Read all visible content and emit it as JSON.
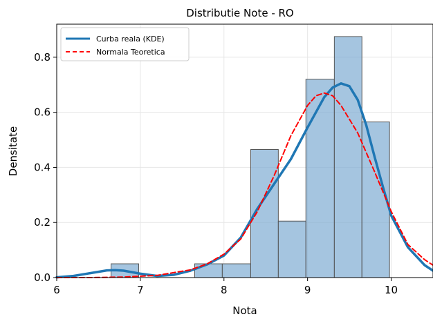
{
  "chart_data": {
    "type": "histogram",
    "title": "Distributie Note - RO",
    "xlabel": "Nota",
    "ylabel": "Densitate",
    "xlim": [
      6.0,
      10.5
    ],
    "ylim": [
      0.0,
      0.92
    ],
    "xticks": [
      6,
      7,
      8,
      9,
      10
    ],
    "xtick_labels": [
      "6",
      "7",
      "8",
      "9",
      "10"
    ],
    "yticks": [
      0.0,
      0.2,
      0.4,
      0.6,
      0.8
    ],
    "ytick_labels": [
      "0.0",
      "0.2",
      "0.4",
      "0.6",
      "0.8"
    ],
    "grid": true,
    "legend_position": "top-left",
    "histogram": {
      "bin_edges": [
        6.65,
        6.98,
        7.32,
        7.65,
        7.98,
        8.32,
        8.65,
        8.98,
        9.32,
        9.65,
        9.98
      ],
      "densities": [
        0.05,
        0.0,
        0.0,
        0.05,
        0.05,
        0.465,
        0.205,
        0.72,
        0.875,
        0.565
      ],
      "fill_color": "#7fadd3",
      "edge_color": "#555555"
    },
    "series": [
      {
        "name": "Curba reala (KDE)",
        "style": "solid",
        "color": "#1f77b4",
        "x": [
          6.0,
          6.2,
          6.4,
          6.6,
          6.7,
          6.8,
          7.0,
          7.2,
          7.4,
          7.6,
          7.8,
          8.0,
          8.2,
          8.4,
          8.6,
          8.8,
          9.0,
          9.2,
          9.3,
          9.4,
          9.5,
          9.6,
          9.7,
          9.8,
          9.9,
          10.0,
          10.2,
          10.4,
          10.5
        ],
        "y": [
          0.001,
          0.006,
          0.016,
          0.026,
          0.027,
          0.025,
          0.014,
          0.006,
          0.01,
          0.025,
          0.048,
          0.08,
          0.145,
          0.25,
          0.34,
          0.43,
          0.545,
          0.655,
          0.69,
          0.705,
          0.695,
          0.645,
          0.555,
          0.44,
          0.33,
          0.225,
          0.11,
          0.045,
          0.025
        ]
      },
      {
        "name": "Normala Teoretica",
        "style": "dashed",
        "color": "#ff0000",
        "x": [
          6.0,
          6.4,
          6.8,
          7.2,
          7.6,
          7.8,
          8.0,
          8.2,
          8.4,
          8.6,
          8.8,
          9.0,
          9.1,
          9.2,
          9.3,
          9.4,
          9.6,
          9.8,
          10.0,
          10.2,
          10.4,
          10.5
        ],
        "y": [
          0.0,
          0.0,
          0.002,
          0.008,
          0.028,
          0.05,
          0.085,
          0.14,
          0.24,
          0.37,
          0.515,
          0.625,
          0.66,
          0.67,
          0.66,
          0.625,
          0.525,
          0.385,
          0.24,
          0.12,
          0.065,
          0.045
        ]
      }
    ]
  }
}
